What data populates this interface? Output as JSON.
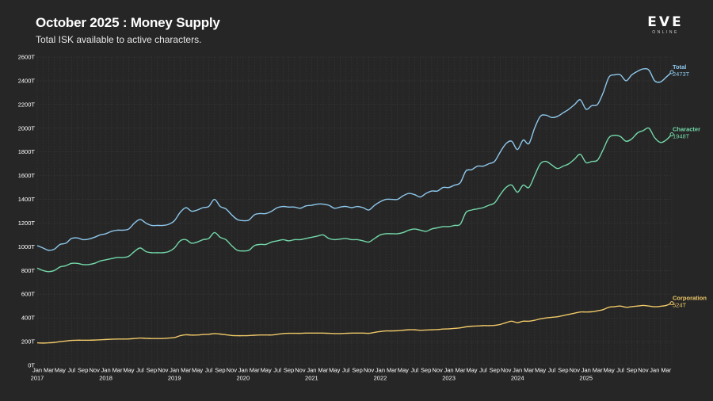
{
  "header": {
    "title": "October 2025 : Money Supply",
    "subtitle": "Total ISK available to active characters."
  },
  "logo": {
    "main": "EVE",
    "sub": "ONLINE"
  },
  "chart_data": {
    "type": "line",
    "title": "October 2025 : Money Supply",
    "subtitle": "Total ISK available to active characters.",
    "xlabel": "",
    "ylabel": "",
    "ylim": [
      0,
      2600
    ],
    "yticks": [
      0,
      200,
      400,
      600,
      800,
      1000,
      1200,
      1400,
      1600,
      1800,
      2000,
      2200,
      2400,
      2600
    ],
    "ytick_labels": [
      "0T",
      "200T",
      "400T",
      "600T",
      "800T",
      "1000T",
      "1200T",
      "1400T",
      "1600T",
      "1800T",
      "2000T",
      "2200T",
      "2400T",
      "2600T"
    ],
    "month_labels": [
      "Jan",
      "Mar",
      "May",
      "Jul",
      "Sep",
      "Nov"
    ],
    "years": [
      "2017",
      "2018",
      "2019",
      "2020",
      "2021",
      "2022",
      "2023",
      "2024",
      "2025"
    ],
    "x_start": "2017-01",
    "grid": true,
    "series": [
      {
        "name": "Total",
        "end_label": "2473T",
        "color": "#8ec8ec",
        "values": [
          1010,
          990,
          970,
          980,
          1020,
          1030,
          1070,
          1075,
          1060,
          1065,
          1080,
          1100,
          1110,
          1130,
          1140,
          1140,
          1150,
          1200,
          1230,
          1200,
          1180,
          1180,
          1180,
          1190,
          1220,
          1290,
          1330,
          1300,
          1310,
          1330,
          1340,
          1400,
          1340,
          1320,
          1270,
          1230,
          1220,
          1225,
          1270,
          1280,
          1280,
          1300,
          1330,
          1340,
          1335,
          1335,
          1325,
          1345,
          1350,
          1360,
          1360,
          1350,
          1325,
          1335,
          1340,
          1330,
          1340,
          1330,
          1310,
          1350,
          1380,
          1400,
          1400,
          1400,
          1430,
          1450,
          1440,
          1420,
          1450,
          1470,
          1470,
          1500,
          1500,
          1520,
          1540,
          1640,
          1650,
          1680,
          1680,
          1700,
          1720,
          1800,
          1870,
          1890,
          1820,
          1900,
          1870,
          2000,
          2100,
          2110,
          2090,
          2100,
          2130,
          2160,
          2200,
          2240,
          2160,
          2190,
          2200,
          2300,
          2430,
          2450,
          2450,
          2400,
          2450,
          2480,
          2500,
          2490,
          2400,
          2390,
          2430,
          2473
        ]
      },
      {
        "name": "Character",
        "end_label": "1948T",
        "color": "#73d9aa",
        "values": [
          820,
          800,
          790,
          800,
          830,
          840,
          860,
          860,
          850,
          850,
          860,
          880,
          890,
          900,
          910,
          910,
          920,
          960,
          990,
          960,
          950,
          950,
          950,
          960,
          990,
          1050,
          1060,
          1030,
          1040,
          1060,
          1070,
          1120,
          1080,
          1060,
          1010,
          970,
          965,
          970,
          1010,
          1020,
          1020,
          1040,
          1050,
          1060,
          1050,
          1060,
          1060,
          1070,
          1080,
          1090,
          1100,
          1070,
          1060,
          1065,
          1070,
          1060,
          1060,
          1050,
          1040,
          1070,
          1100,
          1110,
          1110,
          1110,
          1120,
          1140,
          1150,
          1140,
          1130,
          1150,
          1160,
          1170,
          1170,
          1180,
          1190,
          1290,
          1310,
          1320,
          1330,
          1350,
          1370,
          1440,
          1500,
          1520,
          1460,
          1520,
          1500,
          1600,
          1700,
          1720,
          1690,
          1660,
          1680,
          1700,
          1740,
          1780,
          1710,
          1720,
          1730,
          1820,
          1920,
          1940,
          1930,
          1890,
          1910,
          1960,
          1980,
          2000,
          1920,
          1880,
          1900,
          1948
        ]
      },
      {
        "name": "Corporation",
        "end_label": "524T",
        "color": "#f0c968",
        "values": [
          190,
          188,
          190,
          193,
          200,
          205,
          210,
          212,
          212,
          212,
          213,
          215,
          218,
          220,
          222,
          222,
          223,
          226,
          230,
          228,
          226,
          226,
          227,
          230,
          234,
          250,
          258,
          255,
          256,
          260,
          262,
          268,
          264,
          258,
          252,
          250,
          250,
          251,
          254,
          256,
          256,
          256,
          262,
          268,
          270,
          270,
          270,
          272,
          272,
          272,
          272,
          270,
          268,
          268,
          270,
          272,
          272,
          272,
          270,
          278,
          285,
          290,
          290,
          292,
          296,
          300,
          300,
          296,
          298,
          300,
          302,
          306,
          308,
          312,
          316,
          325,
          330,
          332,
          335,
          335,
          337,
          345,
          360,
          372,
          360,
          372,
          372,
          380,
          392,
          400,
          405,
          410,
          420,
          430,
          440,
          450,
          450,
          452,
          460,
          470,
          490,
          495,
          500,
          490,
          495,
          500,
          505,
          500,
          494,
          498,
          505,
          524
        ]
      }
    ]
  }
}
